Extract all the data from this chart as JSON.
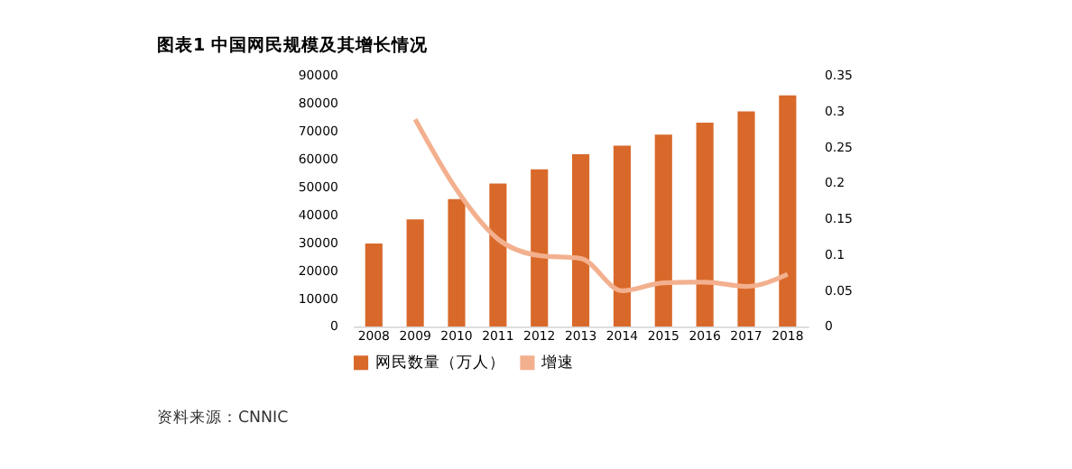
{
  "chart_data": {
    "type": "bar",
    "title": "图表1 中国网民规模及其增长情况",
    "categories": [
      "2008",
      "2009",
      "2010",
      "2011",
      "2012",
      "2013",
      "2014",
      "2015",
      "2016",
      "2017",
      "2018"
    ],
    "series": [
      {
        "name": "网民数量（万人）",
        "color": "#d8692a",
        "values": [
          29800,
          38400,
          45700,
          51300,
          56400,
          61800,
          64900,
          68800,
          73100,
          77200,
          82900
        ]
      },
      {
        "name": "增速",
        "type": "line",
        "axis": "y2",
        "color": "#f3b08e",
        "values": [
          null,
          0.289,
          0.191,
          0.122,
          0.099,
          0.095,
          0.05,
          0.061,
          0.062,
          0.056,
          0.073
        ]
      }
    ],
    "ylim": [
      0,
      90000
    ],
    "yticks": [
      0,
      10000,
      20000,
      30000,
      40000,
      50000,
      60000,
      70000,
      80000,
      90000
    ],
    "y2lim": [
      0,
      0.35
    ],
    "y2ticks": [
      0,
      0.05,
      0.1,
      0.15,
      0.2,
      0.25,
      0.3,
      0.35
    ],
    "grid": false,
    "legend": "bottom",
    "annotations": [
      "资料来源：CNNIC"
    ]
  }
}
